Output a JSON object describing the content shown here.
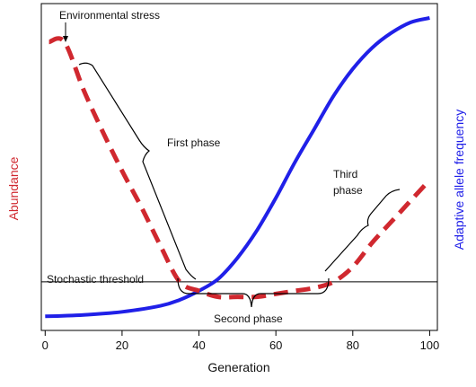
{
  "chart_data": {
    "type": "line",
    "title": "",
    "xlabel": "Generation",
    "ylabel_left": "Abundance",
    "ylabel_right": "Adaptive allele frequency",
    "xlim": [
      -1,
      102
    ],
    "ylim": [
      0,
      1
    ],
    "x_ticks": [
      0,
      20,
      40,
      60,
      80,
      100
    ],
    "grid": false,
    "threshold": {
      "label": "Stochastic threshold",
      "y": 0.12
    },
    "series": [
      {
        "name": "Abundance",
        "style": "dashed",
        "color": "#d0282f",
        "x": [
          1,
          5,
          10,
          15,
          20,
          25,
          30,
          35,
          40,
          45,
          50,
          55,
          60,
          65,
          70,
          75,
          80,
          85,
          90,
          95,
          100
        ],
        "y": [
          0.92,
          0.92,
          0.76,
          0.62,
          0.49,
          0.37,
          0.24,
          0.12,
          0.09,
          0.07,
          0.07,
          0.07,
          0.08,
          0.09,
          0.1,
          0.12,
          0.17,
          0.25,
          0.32,
          0.39,
          0.46
        ]
      },
      {
        "name": "Adaptive allele frequency",
        "style": "solid",
        "color": "#2020e8",
        "x": [
          0,
          10,
          20,
          30,
          35,
          40,
          45,
          50,
          55,
          60,
          65,
          70,
          75,
          80,
          85,
          90,
          95,
          100
        ],
        "y": [
          0.005,
          0.01,
          0.02,
          0.04,
          0.06,
          0.09,
          0.13,
          0.2,
          0.29,
          0.4,
          0.52,
          0.63,
          0.74,
          0.83,
          0.9,
          0.95,
          0.985,
          1.0
        ]
      }
    ],
    "annotations": [
      {
        "text": "Environmental stress",
        "x": 5,
        "y": 0.92
      },
      {
        "text": "First phase",
        "x": 25,
        "y": 0.55
      },
      {
        "text": "Second phase",
        "x": 55,
        "y": 0.0
      },
      {
        "text": "Third",
        "x": 80,
        "y": 0.45
      },
      {
        "text": "phase",
        "x": 80,
        "y": 0.4
      }
    ]
  }
}
